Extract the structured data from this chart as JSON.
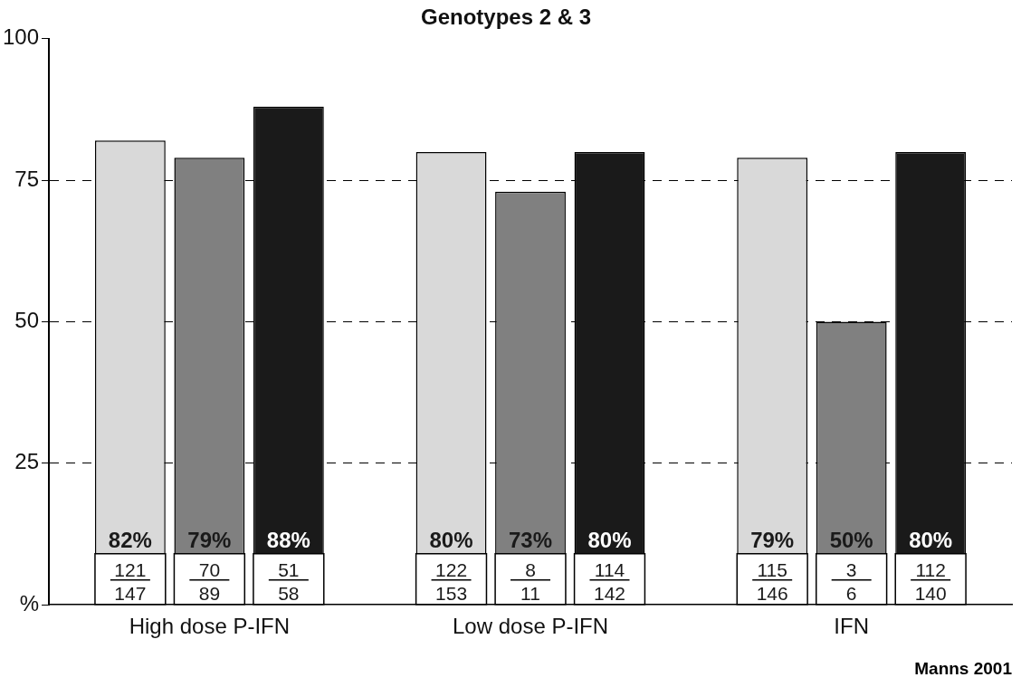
{
  "chart_data": {
    "type": "bar",
    "title": "Genotypes 2 & 3",
    "categories": [
      "High dose P-IFN",
      "Low dose P-IFN",
      "IFN"
    ],
    "series": [
      {
        "color": "#d9d9d9",
        "values": [
          82,
          80,
          79
        ],
        "value_labels": [
          "82%",
          "80%",
          "79%"
        ]
      },
      {
        "color": "#808080",
        "values": [
          79,
          73,
          50
        ],
        "value_labels": [
          "79%",
          "73%",
          "50%"
        ]
      },
      {
        "color": "#1a1a1a",
        "values": [
          88,
          80,
          80
        ],
        "value_labels": [
          "88%",
          "80%",
          "80%"
        ]
      }
    ],
    "ylim": [
      0,
      100
    ],
    "yticks": [
      {
        "value": 0,
        "label": "%"
      },
      25,
      50,
      75,
      100
    ],
    "grid": "y",
    "legend": false,
    "annotations": [
      "121",
      "147",
      "122",
      "153",
      "115",
      "146",
      "70",
      "89",
      "8",
      "11",
      "3",
      "6",
      "51",
      "58",
      "114",
      "142",
      "112",
      "140",
      "Manns 2001"
    ]
  }
}
